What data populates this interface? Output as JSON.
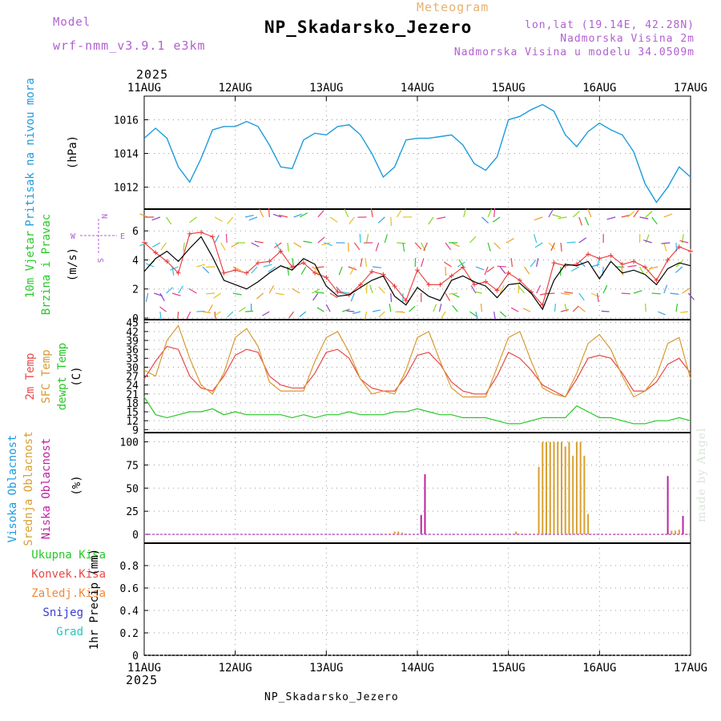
{
  "header": {
    "model_label": "Model",
    "model_name": "wrf-nmm_v3.9.1 e3km",
    "meteogram_label": "Meteogram",
    "station": "NP_Skadarsko_Jezero",
    "lonlat": "lon,lat (19.14E, 42.28N)",
    "elevation": "Nadmorska Visina 2m",
    "model_elevation": "Nadmorska Visina u modelu 34.0509m",
    "year": "2025",
    "footer_station": "NP_Skadarsko_Jezero",
    "credit": "made by Angel"
  },
  "time_axis": {
    "labels": [
      "11AUG",
      "12AUG",
      "13AUG",
      "14AUG",
      "15AUG",
      "16AUG",
      "17AUG"
    ],
    "hours_total": 144
  },
  "chart_data": [
    {
      "type": "line",
      "title": "Pritisak na nivou mora",
      "ylabel": "(hPa)",
      "ylim": [
        1010.7,
        1017.4
      ],
      "yticks": [
        1012,
        1014,
        1016
      ],
      "x_hours": [
        0,
        3,
        6,
        9,
        12,
        15,
        18,
        21,
        24,
        27,
        30,
        33,
        36,
        39,
        42,
        45,
        48,
        51,
        54,
        57,
        60,
        63,
        66,
        69,
        72,
        75,
        78,
        81,
        84,
        87,
        90,
        93,
        96,
        99,
        102,
        105,
        108,
        111,
        114,
        117,
        120,
        123,
        126,
        129,
        132,
        135,
        138,
        141,
        144
      ],
      "series": [
        {
          "name": "Pritisak",
          "color": "#1e9bdc",
          "values": [
            1014.9,
            1015.5,
            1014.9,
            1013.2,
            1012.3,
            1013.7,
            1015.4,
            1015.6,
            1015.6,
            1015.9,
            1015.6,
            1014.5,
            1013.2,
            1013.1,
            1014.8,
            1015.2,
            1015.1,
            1015.6,
            1015.7,
            1015.1,
            1014.0,
            1012.6,
            1013.2,
            1014.8,
            1014.9,
            1014.9,
            1015.0,
            1015.1,
            1014.5,
            1013.4,
            1013.0,
            1013.8,
            1016.0,
            1016.2,
            1016.6,
            1016.9,
            1016.5,
            1015.1,
            1014.4,
            1015.3,
            1015.8,
            1015.4,
            1015.1,
            1014.1,
            1012.2,
            1011.1,
            1012.0,
            1013.2,
            1012.6
          ]
        }
      ]
    },
    {
      "type": "line",
      "title": "10m Vjetar Brzina i Pravac",
      "ylabel": "(m/s)",
      "ylim": [
        0,
        7.5
      ],
      "yticks": [
        0,
        2,
        4,
        6
      ],
      "compass": {
        "n": "N",
        "s": "S",
        "e": "E",
        "w": "W"
      },
      "x_hours": [
        0,
        3,
        6,
        9,
        12,
        15,
        18,
        21,
        24,
        27,
        30,
        33,
        36,
        39,
        42,
        45,
        48,
        51,
        54,
        57,
        60,
        63,
        66,
        69,
        72,
        75,
        78,
        81,
        84,
        87,
        90,
        93,
        96,
        99,
        102,
        105,
        108,
        111,
        114,
        117,
        120,
        123,
        126,
        129,
        132,
        135,
        138,
        141,
        144
      ],
      "series": [
        {
          "name": "Brzina 10m",
          "color": "#000000",
          "values": [
            3.2,
            4.1,
            4.6,
            3.9,
            4.8,
            5.6,
            4.2,
            2.6,
            2.3,
            2.0,
            2.5,
            3.1,
            3.6,
            3.3,
            4.1,
            3.7,
            2.2,
            1.5,
            1.6,
            2.1,
            2.6,
            2.9,
            1.5,
            0.9,
            2.1,
            1.5,
            1.2,
            2.6,
            2.9,
            2.5,
            2.2,
            1.4,
            2.3,
            2.4,
            1.7,
            0.6,
            2.6,
            3.7,
            3.6,
            3.9,
            2.7,
            3.9,
            3.1,
            3.3,
            3.0,
            2.3,
            3.4,
            3.8,
            3.6
          ]
        },
        {
          "name": "Udari",
          "color": "#e83838",
          "values": [
            5.2,
            4.5,
            3.9,
            3.1,
            5.8,
            5.9,
            5.6,
            3.1,
            3.3,
            3.1,
            3.8,
            3.9,
            4.6,
            3.5,
            3.8,
            3.1,
            2.8,
            1.8,
            1.6,
            2.3,
            3.2,
            3.0,
            2.2,
            1.2,
            3.3,
            2.3,
            2.3,
            2.9,
            3.5,
            2.3,
            2.5,
            1.9,
            3.1,
            2.6,
            1.8,
            0.9,
            3.8,
            3.6,
            3.7,
            4.4,
            4.1,
            4.3,
            3.7,
            3.9,
            3.5,
            2.6,
            4.0,
            4.9,
            4.6
          ]
        }
      ]
    },
    {
      "type": "line",
      "title": "2m Temp / SFC Temp / dewpt Temp",
      "ylabel": "(C)",
      "ylim": [
        8,
        46
      ],
      "yticks": [
        9,
        12,
        15,
        18,
        21,
        24,
        27,
        30,
        33,
        36,
        39,
        42,
        45
      ],
      "x_hours": [
        0,
        3,
        6,
        9,
        12,
        15,
        18,
        21,
        24,
        27,
        30,
        33,
        36,
        39,
        42,
        45,
        48,
        51,
        54,
        57,
        60,
        63,
        66,
        69,
        72,
        75,
        78,
        81,
        84,
        87,
        90,
        93,
        96,
        99,
        102,
        105,
        108,
        111,
        114,
        117,
        120,
        123,
        126,
        129,
        132,
        135,
        138,
        141,
        144
      ],
      "series": [
        {
          "name": "2m Temp",
          "color": "#e84848",
          "values": [
            26,
            32,
            37,
            36,
            27,
            23,
            22,
            27,
            34,
            36,
            35,
            27,
            24,
            23,
            23,
            28,
            35,
            36,
            33,
            26,
            23,
            22,
            22,
            27,
            34,
            35,
            31,
            25,
            22,
            21,
            21,
            27,
            35,
            33,
            29,
            24,
            22,
            20,
            26,
            33,
            34,
            33,
            28,
            22,
            22,
            25,
            31,
            33,
            28
          ]
        },
        {
          "name": "SFC Temp",
          "color": "#d89a30",
          "values": [
            29,
            27,
            39,
            44,
            33,
            24,
            21,
            28,
            40,
            43,
            37,
            25,
            22,
            22,
            22,
            32,
            40,
            42,
            35,
            26,
            21,
            22,
            21,
            29,
            40,
            42,
            32,
            23,
            20,
            20,
            20,
            30,
            40,
            42,
            32,
            23,
            21,
            20,
            28,
            38,
            41,
            36,
            27,
            20,
            22,
            27,
            38,
            40,
            26
          ]
        },
        {
          "name": "dewpt Temp",
          "color": "#28c828",
          "values": [
            20,
            14,
            13,
            14,
            15,
            15,
            16,
            14,
            15,
            14,
            14,
            14,
            14,
            13,
            14,
            13,
            14,
            14,
            15,
            14,
            14,
            14,
            15,
            15,
            16,
            15,
            14,
            14,
            13,
            13,
            13,
            12,
            11,
            11,
            12,
            13,
            13,
            13,
            17,
            15,
            13,
            13,
            12,
            11,
            11,
            12,
            12,
            13,
            12
          ]
        }
      ]
    },
    {
      "type": "bar",
      "title": "Visoka / Srednja / Niska Oblacnost",
      "ylabel": "(%)",
      "ylim": [
        0,
        110
      ],
      "yticks": [
        0,
        25,
        50,
        75,
        100
      ],
      "series": [
        {
          "name": "Srednja Oblacnost",
          "color": "#d8a030",
          "points": [
            [
              66,
              3
            ],
            [
              67,
              3
            ],
            [
              68,
              2
            ],
            [
              74,
              1
            ],
            [
              98,
              3
            ],
            [
              105,
              100
            ],
            [
              106,
              100
            ],
            [
              107,
              100
            ],
            [
              108,
              100
            ],
            [
              109,
              100
            ],
            [
              110,
              100
            ],
            [
              111,
              95
            ],
            [
              112,
              100
            ],
            [
              113,
              85
            ],
            [
              114,
              100
            ],
            [
              115,
              100
            ],
            [
              116,
              85
            ],
            [
              117,
              22
            ],
            [
              104,
              73
            ],
            [
              139,
              4
            ],
            [
              140,
              4
            ],
            [
              141,
              5
            ]
          ]
        },
        {
          "name": "Niska Oblacnost",
          "color": "#c020a0",
          "points": [
            [
              73,
              21
            ],
            [
              74,
              65
            ],
            [
              138,
              63
            ],
            [
              142,
              20
            ]
          ]
        },
        {
          "name": "Visoka Oblacnost",
          "color": "#1e9bdc",
          "points": [
            [
              73,
              2
            ],
            [
              106,
              1
            ]
          ]
        }
      ]
    },
    {
      "type": "bar",
      "title": "1hr Precip",
      "ylabel": "1hr Precip (mm)",
      "ylim": [
        0,
        1.0
      ],
      "yticks": [
        0,
        0.2,
        0.4,
        0.6,
        0.8
      ],
      "ytick_labels": [
        "0",
        "0.2",
        "0.4",
        "0.6",
        "0.8"
      ],
      "legend": [
        {
          "name": "Ukupna Kisa",
          "color": "#28c828"
        },
        {
          "name": "Konvek.Kisa",
          "color": "#e84848"
        },
        {
          "name": "Zaledj.Kisa",
          "color": "#f08838"
        },
        {
          "name": "Snijeg",
          "color": "#3a3ad8"
        },
        {
          "name": "Grad",
          "color": "#20c8b8"
        }
      ],
      "series": []
    }
  ],
  "panel_labels": {
    "pressure": "Pritisak na nivou mora",
    "pressure_unit": "(hPa)",
    "wind1": "10m Vjetar",
    "wind2": "Brzina i Pravac",
    "wind_unit": "(m/s)",
    "t1": "2m Temp",
    "t2": "SFC Temp",
    "t3": "dewpt Temp",
    "t_unit": "(C)",
    "c1": "Visoka Oblacnost",
    "c2": "Srednja Oblacnost",
    "c3": "Niska Oblacnost",
    "c_unit": "(%)"
  },
  "colors": {
    "pressure": "#1e9bdc",
    "wind_red": "#e84848",
    "temp_red": "#e84848",
    "temp_orange": "#d89a30",
    "dewpt_green": "#28c828",
    "cloud_blue": "#1e9bdc",
    "cloud_orange": "#d8a030",
    "cloud_magenta": "#c020a0",
    "header_purple": "#b060d0",
    "header_orange": "#e8b070"
  }
}
